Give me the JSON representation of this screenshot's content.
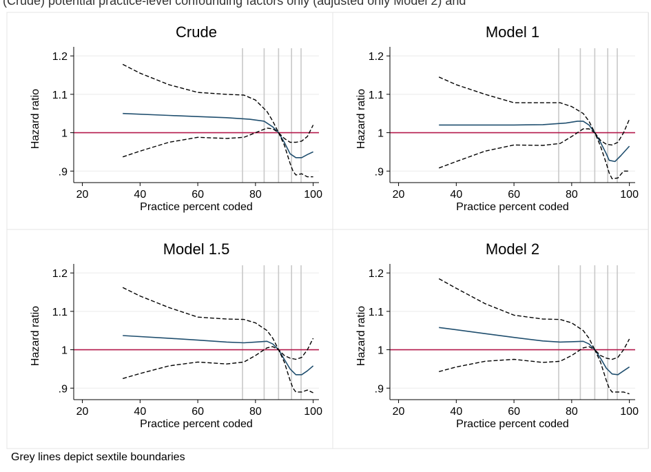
{
  "header_fragment": "(Crude) potential practice-level confounding factors only (adjusted only Model 2) and",
  "footnote": "Grey lines depict sextile boundaries",
  "colors": {
    "estimate": "#1f4e6e",
    "ci": "#000000",
    "reference": "#b4184a",
    "sextile": "#c8c8c8",
    "grid": "#eaeaea",
    "panel_border": "#e4e4e4"
  },
  "chart_data": [
    {
      "type": "line",
      "title": "Crude",
      "xlabel": "Practice percent coded",
      "ylabel": "Hazard ratio",
      "xlim": [
        17,
        102
      ],
      "ylim": [
        0.87,
        1.22
      ],
      "xticks": [
        20,
        40,
        60,
        80,
        100
      ],
      "yticks": [
        0.9,
        1,
        1.1,
        1.2
      ],
      "ytick_labels": [
        ".9",
        "1",
        "1.1",
        "1.2"
      ],
      "grid": true,
      "reference_line": 1,
      "sextile_boundaries": [
        75.5,
        83,
        88,
        92.5,
        95.8
      ],
      "series": [
        {
          "style": "solid",
          "x": [
            34,
            50,
            60,
            70,
            78,
            83,
            86,
            88,
            90,
            92,
            94,
            96,
            98,
            100
          ],
          "y": [
            1.05,
            1.045,
            1.042,
            1.039,
            1.035,
            1.03,
            1.015,
            1.0,
            0.975,
            0.945,
            0.935,
            0.935,
            0.943,
            0.95
          ]
        },
        {
          "style": "dashed",
          "x": [
            34,
            40,
            50,
            60,
            70,
            76,
            80,
            84,
            86,
            88,
            90,
            92,
            94,
            96,
            98,
            100
          ],
          "y": [
            1.178,
            1.155,
            1.125,
            1.105,
            1.1,
            1.098,
            1.085,
            1.055,
            1.03,
            1.0,
            0.985,
            0.975,
            0.975,
            0.978,
            0.99,
            1.02
          ]
        },
        {
          "style": "dashed",
          "x": [
            34,
            40,
            50,
            60,
            70,
            76,
            80,
            84,
            86,
            88,
            90,
            92,
            93,
            94,
            96,
            98,
            100
          ],
          "y": [
            0.937,
            0.952,
            0.975,
            0.988,
            0.985,
            0.988,
            1.0,
            1.012,
            1.01,
            1.0,
            0.968,
            0.92,
            0.9,
            0.89,
            0.893,
            0.885,
            0.885
          ]
        }
      ]
    },
    {
      "type": "line",
      "title": "Model 1",
      "xlabel": "Practice percent coded",
      "ylabel": "Hazard ratio",
      "xlim": [
        17,
        102
      ],
      "ylim": [
        0.87,
        1.22
      ],
      "xticks": [
        20,
        40,
        60,
        80,
        100
      ],
      "yticks": [
        0.9,
        1,
        1.1,
        1.2
      ],
      "ytick_labels": [
        ".9",
        "1",
        "1.1",
        "1.2"
      ],
      "grid": true,
      "reference_line": 1,
      "sextile_boundaries": [
        75.5,
        83,
        88,
        92.5,
        95.8
      ],
      "series": [
        {
          "style": "solid",
          "x": [
            34,
            50,
            60,
            70,
            78,
            82,
            84,
            86,
            88,
            90,
            92,
            93,
            95,
            97,
            100
          ],
          "y": [
            1.02,
            1.02,
            1.02,
            1.021,
            1.025,
            1.03,
            1.03,
            1.02,
            1.0,
            0.975,
            0.945,
            0.928,
            0.925,
            0.94,
            0.965
          ]
        },
        {
          "style": "dashed",
          "x": [
            34,
            40,
            50,
            60,
            70,
            76,
            80,
            84,
            86,
            88,
            90,
            92,
            94,
            96,
            98,
            100
          ],
          "y": [
            1.145,
            1.125,
            1.1,
            1.078,
            1.078,
            1.078,
            1.068,
            1.05,
            1.03,
            1.0,
            0.98,
            0.97,
            0.968,
            0.975,
            1.0,
            1.035
          ]
        },
        {
          "style": "dashed",
          "x": [
            34,
            40,
            50,
            60,
            70,
            76,
            80,
            84,
            86,
            88,
            90,
            92,
            93,
            94,
            96,
            98,
            100
          ],
          "y": [
            0.908,
            0.925,
            0.952,
            0.968,
            0.967,
            0.972,
            0.99,
            1.01,
            1.01,
            1.0,
            0.965,
            0.92,
            0.895,
            0.88,
            0.882,
            0.9,
            0.9
          ]
        }
      ]
    },
    {
      "type": "line",
      "title": "Model 1.5",
      "xlabel": "Practice percent coded",
      "ylabel": "Hazard ratio",
      "xlim": [
        17,
        102
      ],
      "ylim": [
        0.87,
        1.22
      ],
      "xticks": [
        20,
        40,
        60,
        80,
        100
      ],
      "yticks": [
        0.9,
        1,
        1.1,
        1.2
      ],
      "ytick_labels": [
        ".9",
        "1",
        "1.1",
        "1.2"
      ],
      "grid": true,
      "reference_line": 1,
      "sextile_boundaries": [
        75.5,
        83,
        88,
        92.5,
        95.8
      ],
      "series": [
        {
          "style": "solid",
          "x": [
            34,
            50,
            60,
            70,
            76,
            80,
            84,
            86,
            88,
            90,
            92,
            94,
            96,
            98,
            100
          ],
          "y": [
            1.037,
            1.03,
            1.025,
            1.02,
            1.018,
            1.02,
            1.022,
            1.015,
            1.0,
            0.975,
            0.95,
            0.935,
            0.935,
            0.945,
            0.958
          ]
        },
        {
          "style": "dashed",
          "x": [
            34,
            40,
            50,
            60,
            70,
            76,
            80,
            84,
            86,
            88,
            90,
            92,
            94,
            96,
            98,
            100
          ],
          "y": [
            1.162,
            1.14,
            1.11,
            1.085,
            1.08,
            1.079,
            1.07,
            1.05,
            1.03,
            1.0,
            0.985,
            0.978,
            0.975,
            0.98,
            1.0,
            1.03
          ]
        },
        {
          "style": "dashed",
          "x": [
            34,
            40,
            50,
            60,
            70,
            76,
            80,
            84,
            86,
            88,
            90,
            92,
            93,
            94,
            96,
            98,
            100
          ],
          "y": [
            0.925,
            0.938,
            0.958,
            0.968,
            0.963,
            0.968,
            0.985,
            1.005,
            1.008,
            1.0,
            0.968,
            0.92,
            0.9,
            0.89,
            0.89,
            0.895,
            0.888
          ]
        }
      ]
    },
    {
      "type": "line",
      "title": "Model 2",
      "xlabel": "Practice percent coded",
      "ylabel": "Hazard ratio",
      "xlim": [
        17,
        102
      ],
      "ylim": [
        0.87,
        1.22
      ],
      "xticks": [
        20,
        40,
        60,
        80,
        100
      ],
      "yticks": [
        0.9,
        1,
        1.1,
        1.2
      ],
      "ytick_labels": [
        ".9",
        "1",
        "1.1",
        "1.2"
      ],
      "grid": true,
      "reference_line": 1,
      "sextile_boundaries": [
        75.5,
        83,
        88,
        92.5,
        95.8
      ],
      "series": [
        {
          "style": "solid",
          "x": [
            34,
            40,
            50,
            60,
            70,
            76,
            80,
            84,
            86,
            88,
            90,
            92,
            94,
            96,
            98,
            100
          ],
          "y": [
            1.058,
            1.052,
            1.042,
            1.032,
            1.023,
            1.02,
            1.021,
            1.022,
            1.015,
            1.0,
            0.978,
            0.952,
            0.937,
            0.935,
            0.945,
            0.955
          ]
        },
        {
          "style": "dashed",
          "x": [
            34,
            40,
            50,
            60,
            70,
            76,
            80,
            84,
            86,
            88,
            90,
            92,
            94,
            96,
            98,
            100
          ],
          "y": [
            1.185,
            1.16,
            1.12,
            1.09,
            1.08,
            1.079,
            1.07,
            1.05,
            1.03,
            1.0,
            0.985,
            0.978,
            0.975,
            0.98,
            1.0,
            1.028
          ]
        },
        {
          "style": "dashed",
          "x": [
            34,
            40,
            50,
            60,
            70,
            76,
            80,
            84,
            86,
            88,
            90,
            92,
            93,
            94,
            96,
            98,
            100
          ],
          "y": [
            0.943,
            0.955,
            0.97,
            0.975,
            0.967,
            0.97,
            0.985,
            1.005,
            1.008,
            1.0,
            0.968,
            0.92,
            0.9,
            0.89,
            0.89,
            0.89,
            0.885
          ]
        }
      ]
    }
  ]
}
